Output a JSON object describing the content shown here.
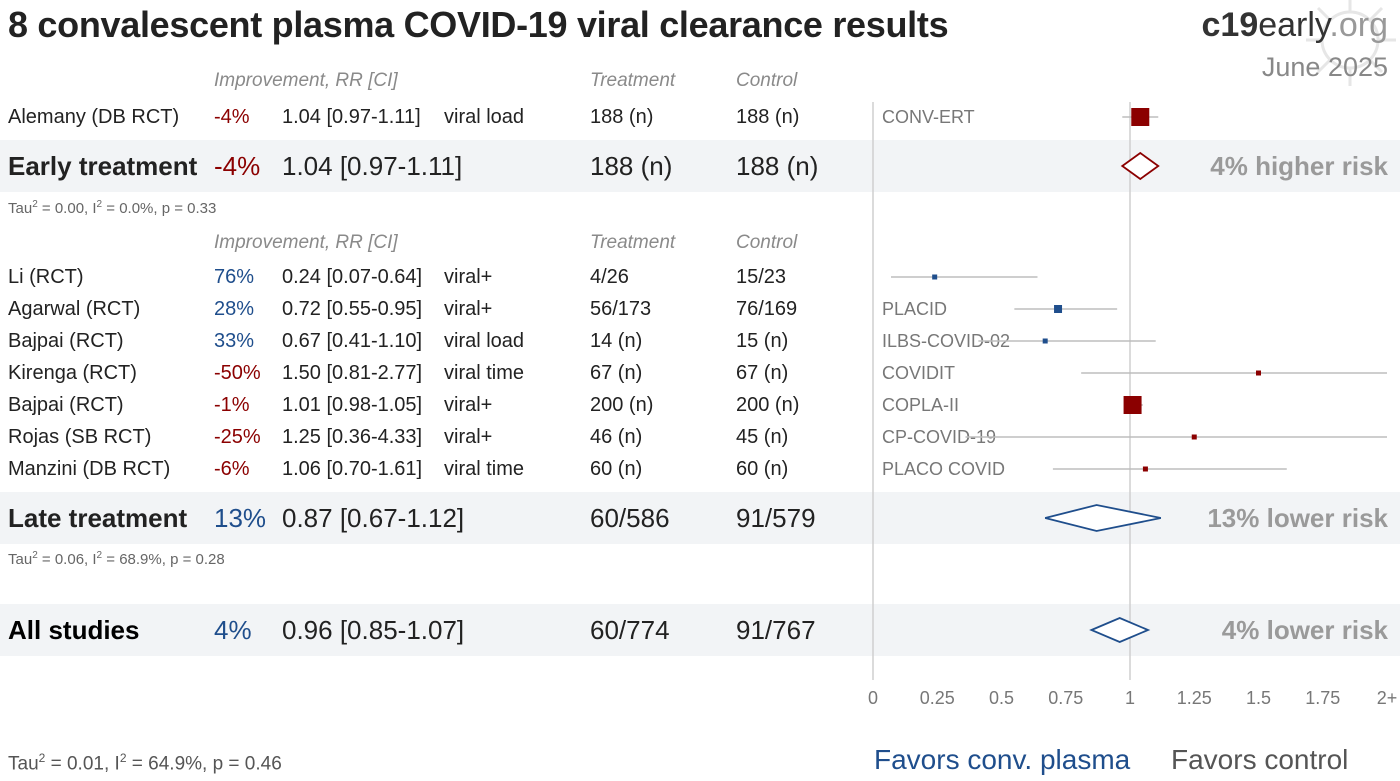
{
  "title": "8 convalescent plasma COVID-19 viral clearance results",
  "brand": {
    "bold": "c19",
    "mid": "early",
    "suffix": ".org",
    "date": "June 2025"
  },
  "headers": {
    "improvement": "Improvement, RR [CI]",
    "treatment": "Treatment",
    "control": "Control"
  },
  "early": {
    "studies": [
      {
        "name": "Alemany (DB RCT)",
        "improvement": "-4%",
        "rr": "1.04 [0.97-1.11]",
        "outcome": "viral load",
        "treatment": "188 (n)",
        "control": "188 (n)",
        "trial": "CONV-ERT"
      }
    ],
    "summary": {
      "label": "Early treatment",
      "improvement": "-4%",
      "rr": "1.04 [0.97-1.11]",
      "treatment": "188 (n)",
      "control": "188 (n)",
      "risk": "4% higher risk"
    },
    "stats": {
      "tau": "Tau",
      "tau_tail": " = 0.00, I",
      "i_tail": " = 0.0%, p = 0.33"
    }
  },
  "late": {
    "studies": [
      {
        "name": "Li (RCT)",
        "improvement": "76%",
        "rr": "0.24 [0.07-0.64]",
        "outcome": "viral+",
        "treatment": "4/26",
        "control": "15/23",
        "trial": ""
      },
      {
        "name": "Agarwal (RCT)",
        "improvement": "28%",
        "rr": "0.72 [0.55-0.95]",
        "outcome": "viral+",
        "treatment": "56/173",
        "control": "76/169",
        "trial": "PLACID"
      },
      {
        "name": "Bajpai (RCT)",
        "improvement": "33%",
        "rr": "0.67 [0.41-1.10]",
        "outcome": "viral load",
        "treatment": "14 (n)",
        "control": "15 (n)",
        "trial": "ILBS-COVID-02"
      },
      {
        "name": "Kirenga (RCT)",
        "improvement": "-50%",
        "rr": "1.50 [0.81-2.77]",
        "outcome": "viral time",
        "treatment": "67 (n)",
        "control": "67 (n)",
        "trial": "COVIDIT"
      },
      {
        "name": "Bajpai (RCT)",
        "improvement": "-1%",
        "rr": "1.01 [0.98-1.05]",
        "outcome": "viral+",
        "treatment": "200 (n)",
        "control": "200 (n)",
        "trial": "COPLA-II"
      },
      {
        "name": "Rojas (SB RCT)",
        "improvement": "-25%",
        "rr": "1.25 [0.36-4.33]",
        "outcome": "viral+",
        "treatment": "46 (n)",
        "control": "45 (n)",
        "trial": "CP-COVID-19"
      },
      {
        "name": "Manzini (DB RCT)",
        "improvement": "-6%",
        "rr": "1.06 [0.70-1.61]",
        "outcome": "viral time",
        "treatment": "60 (n)",
        "control": "60 (n)",
        "trial": "PLACO COVID"
      }
    ],
    "summary": {
      "label": "Late treatment",
      "improvement": "13%",
      "rr": "0.87 [0.67-1.12]",
      "treatment": "60/586",
      "control": "91/579",
      "risk": "13% lower risk"
    },
    "stats": {
      "tau": "Tau",
      "tau_tail": " = 0.06, I",
      "i_tail": " = 68.9%, p = 0.28"
    }
  },
  "all": {
    "summary": {
      "label": "All studies",
      "improvement": "4%",
      "rr": "0.96 [0.85-1.07]",
      "treatment": "60/774",
      "control": "91/767",
      "risk": "4% lower risk"
    },
    "stats": {
      "tau": "Tau",
      "tau_tail": " = 0.01, I",
      "i_tail": " = 64.9%, p = 0.46"
    }
  },
  "favors": {
    "left": "Favors conv. plasma",
    "right": "Favors control"
  },
  "colors": {
    "negative": "#8b0000",
    "positive": "#1f4e8c",
    "band": "#f2f4f6",
    "axis": "#bbbbbb"
  },
  "chart_data": {
    "type": "forest",
    "xlim": [
      0,
      2
    ],
    "xticks": [
      "0",
      "0.25",
      "0.5",
      "0.75",
      "1",
      "1.25",
      "1.5",
      "1.75",
      "2+"
    ],
    "reference_line": 1,
    "studies": [
      {
        "name": "Alemany (DB RCT)",
        "rr": 1.04,
        "lo": 0.97,
        "hi": 1.11,
        "size": "large",
        "color": "#8b0000"
      },
      {
        "name": "Li (RCT)",
        "rr": 0.24,
        "lo": 0.07,
        "hi": 0.64,
        "size": "small",
        "color": "#1f4e8c"
      },
      {
        "name": "Agarwal (RCT)",
        "rr": 0.72,
        "lo": 0.55,
        "hi": 0.95,
        "size": "medium",
        "color": "#1f4e8c"
      },
      {
        "name": "Bajpai (RCT)",
        "rr": 0.67,
        "lo": 0.41,
        "hi": 1.1,
        "size": "small",
        "color": "#1f4e8c"
      },
      {
        "name": "Kirenga (RCT)",
        "rr": 1.5,
        "lo": 0.81,
        "hi": 2.77,
        "size": "small",
        "color": "#8b0000"
      },
      {
        "name": "Bajpai (RCT)",
        "rr": 1.01,
        "lo": 0.98,
        "hi": 1.05,
        "size": "large",
        "color": "#8b0000"
      },
      {
        "name": "Rojas (SB RCT)",
        "rr": 1.25,
        "lo": 0.36,
        "hi": 4.33,
        "size": "small",
        "color": "#8b0000"
      },
      {
        "name": "Manzini (DB RCT)",
        "rr": 1.06,
        "lo": 0.7,
        "hi": 1.61,
        "size": "small",
        "color": "#8b0000"
      }
    ],
    "pooled": [
      {
        "name": "Early treatment",
        "rr": 1.04,
        "lo": 0.97,
        "hi": 1.11,
        "color": "#8b0000"
      },
      {
        "name": "Late treatment",
        "rr": 0.87,
        "lo": 0.67,
        "hi": 1.12,
        "color": "#1f4e8c"
      },
      {
        "name": "All studies",
        "rr": 0.96,
        "lo": 0.85,
        "hi": 1.07,
        "color": "#1f4e8c"
      }
    ]
  }
}
